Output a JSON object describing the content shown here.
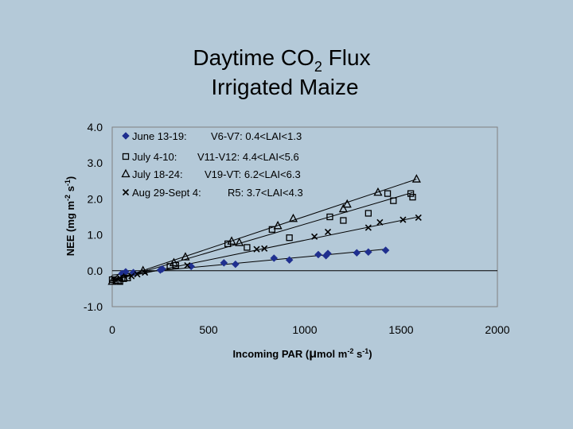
{
  "chart_data": {
    "type": "scatter",
    "title_line1": "Daytime CO",
    "title_sub": "2",
    "title_line1_end": " Flux",
    "title_line2": "Irrigated Maize",
    "xlabel": "Incoming PAR (μmol m-2 s-1)",
    "xlabel_parts": [
      "Incoming PAR (",
      "μ",
      "mol m",
      "-2",
      " s",
      "-1",
      ")"
    ],
    "ylabel": "NEE (mg m-2 s-1)",
    "ylabel_parts": [
      "NEE (mg m",
      "-2",
      " s",
      "-1",
      ")"
    ],
    "xlim": [
      0,
      2000
    ],
    "ylim": [
      -1.0,
      4.0
    ],
    "x_ticks": [
      "0",
      "500",
      "1000",
      "1500",
      "2000"
    ],
    "x_tick_values": [
      0,
      500,
      1000,
      1500,
      2000
    ],
    "y_ticks": [
      "-1.0",
      "0.0",
      "1.0",
      "2.0",
      "3.0",
      "4.0"
    ],
    "y_tick_values": [
      -1,
      0,
      1,
      2,
      3,
      4
    ],
    "grid": false,
    "legend_position": "top-left",
    "colors": {
      "background": "#b4c9d8",
      "series1": "#1f2f8f",
      "ink": "#000000"
    },
    "series": [
      {
        "name": "June 13-19:",
        "stage": "V6-V7: 0.4<LAI<1.3",
        "marker": "diamond",
        "fit": [
          [
            0,
            -0.12
          ],
          [
            1420,
            0.6
          ]
        ],
        "points": [
          [
            50,
            -0.08
          ],
          [
            70,
            -0.03
          ],
          [
            110,
            -0.05
          ],
          [
            250,
            0.02
          ],
          [
            260,
            0.05
          ],
          [
            410,
            0.12
          ],
          [
            580,
            0.22
          ],
          [
            640,
            0.18
          ],
          [
            840,
            0.35
          ],
          [
            920,
            0.3
          ],
          [
            1070,
            0.45
          ],
          [
            1110,
            0.42
          ],
          [
            1120,
            0.48
          ],
          [
            1270,
            0.5
          ],
          [
            1330,
            0.52
          ],
          [
            1420,
            0.57
          ]
        ]
      },
      {
        "name": "July 4-10:",
        "stage": "V11-V12: 4.4<LAI<5.6",
        "marker": "square",
        "fit": [
          [
            0,
            -0.28
          ],
          [
            1560,
            2.18
          ]
        ],
        "points": [
          [
            0,
            -0.25
          ],
          [
            20,
            -0.28
          ],
          [
            40,
            -0.3
          ],
          [
            60,
            -0.22
          ],
          [
            80,
            -0.2
          ],
          [
            300,
            0.12
          ],
          [
            330,
            0.15
          ],
          [
            600,
            0.75
          ],
          [
            700,
            0.65
          ],
          [
            830,
            1.15
          ],
          [
            920,
            0.92
          ],
          [
            1130,
            1.5
          ],
          [
            1200,
            1.4
          ],
          [
            1330,
            1.6
          ],
          [
            1430,
            2.15
          ],
          [
            1460,
            1.95
          ],
          [
            1550,
            2.15
          ],
          [
            1560,
            2.05
          ]
        ]
      },
      {
        "name": "July 18-24:",
        "stage": "V19-VT: 6.2<LAI<6.3",
        "marker": "triangle",
        "fit": [
          [
            0,
            -0.28
          ],
          [
            1580,
            2.55
          ]
        ],
        "points": [
          [
            0,
            -0.3
          ],
          [
            30,
            -0.28
          ],
          [
            60,
            -0.2
          ],
          [
            160,
            0.0
          ],
          [
            320,
            0.22
          ],
          [
            380,
            0.38
          ],
          [
            620,
            0.82
          ],
          [
            660,
            0.78
          ],
          [
            860,
            1.25
          ],
          [
            940,
            1.45
          ],
          [
            1200,
            1.72
          ],
          [
            1220,
            1.85
          ],
          [
            1380,
            2.18
          ],
          [
            1580,
            2.55
          ]
        ]
      },
      {
        "name": "Aug 29-Sept 4:",
        "stage": "R5: 3.7<LAI<4.3",
        "marker": "x",
        "fit": [
          [
            0,
            -0.25
          ],
          [
            1590,
            1.5
          ]
        ],
        "points": [
          [
            10,
            -0.22
          ],
          [
            40,
            -0.2
          ],
          [
            100,
            -0.15
          ],
          [
            130,
            -0.1
          ],
          [
            170,
            -0.05
          ],
          [
            390,
            0.15
          ],
          [
            750,
            0.6
          ],
          [
            790,
            0.62
          ],
          [
            1050,
            0.95
          ],
          [
            1120,
            1.08
          ],
          [
            1330,
            1.2
          ],
          [
            1390,
            1.35
          ],
          [
            1510,
            1.42
          ],
          [
            1590,
            1.48
          ]
        ]
      }
    ]
  }
}
